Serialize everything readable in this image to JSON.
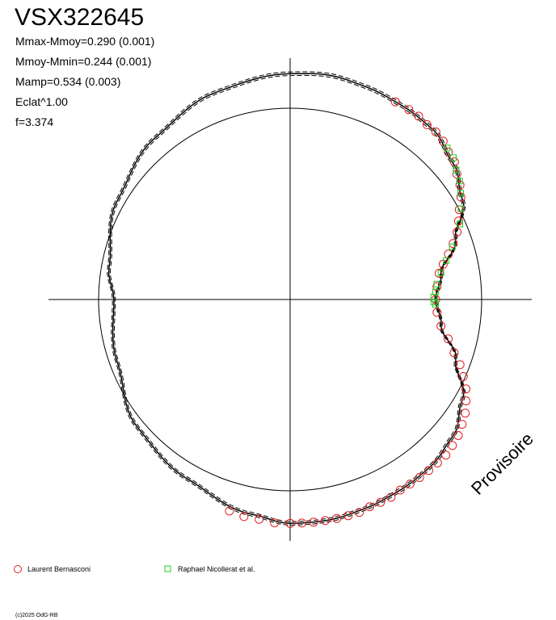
{
  "header": {
    "title": "VSX322645",
    "params": [
      "Mmax-Mmoy=0.290 (0.001)",
      "Mmoy-Mmin=0.244 (0.001)",
      "Mamp=0.534 (0.003)",
      "Eclat^1.00",
      "f=3.374"
    ]
  },
  "watermark": "Provisoire",
  "copyright": "(c)2025 OdG-RB",
  "colors": {
    "series_1": "#e02020",
    "series_2": "#22cc22",
    "curve": "#000000"
  },
  "chart_data": {
    "type": "scatter",
    "projection": "polar",
    "title": "VSX322645",
    "reference_circle_radius": 1.0,
    "curve": {
      "description_printed": "",
      "points": [
        {
          "angle_deg": 0,
          "r": 0.76
        },
        {
          "angle_deg": 10,
          "r": 0.8
        },
        {
          "angle_deg": 20,
          "r": 0.92
        },
        {
          "angle_deg": 30,
          "r": 1.04
        },
        {
          "angle_deg": 40,
          "r": 1.11
        },
        {
          "angle_deg": 50,
          "r": 1.16
        },
        {
          "angle_deg": 60,
          "r": 1.17
        },
        {
          "angle_deg": 70,
          "r": 1.18
        },
        {
          "angle_deg": 80,
          "r": 1.19
        },
        {
          "angle_deg": 90,
          "r": 1.18
        },
        {
          "angle_deg": 110,
          "r": 1.15
        },
        {
          "angle_deg": 130,
          "r": 1.1
        },
        {
          "angle_deg": 150,
          "r": 1.04
        },
        {
          "angle_deg": 170,
          "r": 0.96
        },
        {
          "angle_deg": 180,
          "r": 0.92
        },
        {
          "angle_deg": 200,
          "r": 0.96
        },
        {
          "angle_deg": 220,
          "r": 1.04
        },
        {
          "angle_deg": 240,
          "r": 1.08
        },
        {
          "angle_deg": 260,
          "r": 1.14
        },
        {
          "angle_deg": 270,
          "r": 1.17
        },
        {
          "angle_deg": 280,
          "r": 1.17
        },
        {
          "angle_deg": 290,
          "r": 1.16
        },
        {
          "angle_deg": 300,
          "r": 1.15
        },
        {
          "angle_deg": 310,
          "r": 1.14
        },
        {
          "angle_deg": 320,
          "r": 1.11
        },
        {
          "angle_deg": 330,
          "r": 1.04
        },
        {
          "angle_deg": 340,
          "r": 0.92
        },
        {
          "angle_deg": 350,
          "r": 0.8
        },
        {
          "angle_deg": 360,
          "r": 0.76
        }
      ]
    },
    "series": [
      {
        "name": "Laurent Bernasconi",
        "marker": "circle",
        "color": "#e02020",
        "points": [
          {
            "angle_deg": 62,
            "r": 1.17
          },
          {
            "angle_deg": 58,
            "r": 1.17
          },
          {
            "angle_deg": 55,
            "r": 1.17
          },
          {
            "angle_deg": 52,
            "r": 1.16
          },
          {
            "angle_deg": 49,
            "r": 1.16
          },
          {
            "angle_deg": 46,
            "r": 1.15
          },
          {
            "angle_deg": 43,
            "r": 1.13
          },
          {
            "angle_deg": 40,
            "r": 1.12
          },
          {
            "angle_deg": 37,
            "r": 1.09
          },
          {
            "angle_deg": 34,
            "r": 1.07
          },
          {
            "angle_deg": 31,
            "r": 1.04
          },
          {
            "angle_deg": 28,
            "r": 1.0
          },
          {
            "angle_deg": 25,
            "r": 0.97
          },
          {
            "angle_deg": 22,
            "r": 0.94
          },
          {
            "angle_deg": 19,
            "r": 0.9
          },
          {
            "angle_deg": 16,
            "r": 0.86
          },
          {
            "angle_deg": 13,
            "r": 0.82
          },
          {
            "angle_deg": 10,
            "r": 0.79
          },
          {
            "angle_deg": 5,
            "r": 0.77
          },
          {
            "angle_deg": 0,
            "r": 0.76
          },
          {
            "angle_deg": -5,
            "r": 0.77
          },
          {
            "angle_deg": -10,
            "r": 0.8
          },
          {
            "angle_deg": -14,
            "r": 0.85
          },
          {
            "angle_deg": -18,
            "r": 0.9
          },
          {
            "angle_deg": -21,
            "r": 0.95
          },
          {
            "angle_deg": -24,
            "r": 0.99
          },
          {
            "angle_deg": -27,
            "r": 1.03
          },
          {
            "angle_deg": -30,
            "r": 1.06
          },
          {
            "angle_deg": -33,
            "r": 1.09
          },
          {
            "angle_deg": -36,
            "r": 1.11
          },
          {
            "angle_deg": -39,
            "r": 1.13
          },
          {
            "angle_deg": -42,
            "r": 1.14
          },
          {
            "angle_deg": -45,
            "r": 1.15
          },
          {
            "angle_deg": -48,
            "r": 1.15
          },
          {
            "angle_deg": -51,
            "r": 1.15
          },
          {
            "angle_deg": -54,
            "r": 1.15
          },
          {
            "angle_deg": -57,
            "r": 1.15
          },
          {
            "angle_deg": -60,
            "r": 1.15
          },
          {
            "angle_deg": -63,
            "r": 1.16
          },
          {
            "angle_deg": -66,
            "r": 1.16
          },
          {
            "angle_deg": -69,
            "r": 1.16
          },
          {
            "angle_deg": -72,
            "r": 1.17
          },
          {
            "angle_deg": -75,
            "r": 1.17
          },
          {
            "angle_deg": -78,
            "r": 1.17
          },
          {
            "angle_deg": -81,
            "r": 1.17
          },
          {
            "angle_deg": -84,
            "r": 1.17
          },
          {
            "angle_deg": -87,
            "r": 1.17
          },
          {
            "angle_deg": -90,
            "r": 1.17
          },
          {
            "angle_deg": -94,
            "r": 1.17
          },
          {
            "angle_deg": -98,
            "r": 1.16
          },
          {
            "angle_deg": -102,
            "r": 1.16
          },
          {
            "angle_deg": -106,
            "r": 1.15
          }
        ]
      },
      {
        "name": "Raphael Nicollerat et al.",
        "marker": "square",
        "color": "#22cc22",
        "points": [
          {
            "angle_deg": 44,
            "r": 1.14
          },
          {
            "angle_deg": 41,
            "r": 1.13
          },
          {
            "angle_deg": 38,
            "r": 1.1
          },
          {
            "angle_deg": 35,
            "r": 1.08
          },
          {
            "angle_deg": 32,
            "r": 1.05
          },
          {
            "angle_deg": 28,
            "r": 1.01
          },
          {
            "angle_deg": 24,
            "r": 0.97
          },
          {
            "angle_deg": 18,
            "r": 0.89
          },
          {
            "angle_deg": 14,
            "r": 0.84
          },
          {
            "angle_deg": 10,
            "r": 0.8
          },
          {
            "angle_deg": 6,
            "r": 0.77
          },
          {
            "angle_deg": 3,
            "r": 0.76
          },
          {
            "angle_deg": 1,
            "r": 0.75
          },
          {
            "angle_deg": -1,
            "r": 0.75
          },
          {
            "angle_deg": -2,
            "r": 0.76
          }
        ]
      }
    ],
    "axes": {
      "crosshair": true,
      "grid": false
    },
    "legend": {
      "placement": "bottom",
      "entries": [
        "Laurent Bernasconi",
        "Raphael Nicollerat et al."
      ]
    }
  }
}
